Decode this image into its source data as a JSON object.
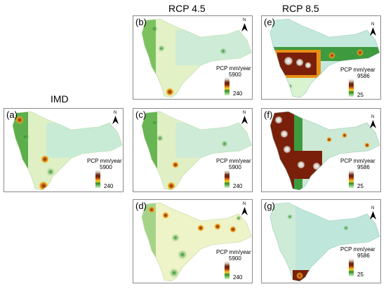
{
  "columns": {
    "imd": "IMD",
    "rcp45": "RCP 4.5",
    "rcp85": "RCP 8.5"
  },
  "panels": {
    "a": {
      "label": "(a)",
      "unit": "PCP mm/year",
      "max": "5900",
      "min": "240"
    },
    "b": {
      "label": "(b)",
      "unit": "PCP mm/year",
      "max": "5900",
      "min": "240"
    },
    "c": {
      "label": "(c)",
      "unit": "PCP mm/year",
      "max": "5900",
      "min": "240"
    },
    "d": {
      "label": "(d)",
      "unit": "PCP mm/year",
      "max": "5900",
      "min": "240"
    },
    "e": {
      "label": "(e)",
      "unit": "PCP mm/year",
      "max": "9586",
      "min": "25"
    },
    "f": {
      "label": "(f)",
      "unit": "PCP mm/year",
      "max": "9586",
      "min": "25"
    },
    "g": {
      "label": "(g)",
      "unit": "PCP mm/year",
      "max": "9586",
      "min": "25"
    }
  },
  "north_arrow": "N",
  "colors": {
    "high": "#7a1f0a",
    "mid": "#2f8a2f",
    "low": "#d8f3d0",
    "pale": "#eef3c8",
    "cyan_low": "#bfe6da"
  }
}
